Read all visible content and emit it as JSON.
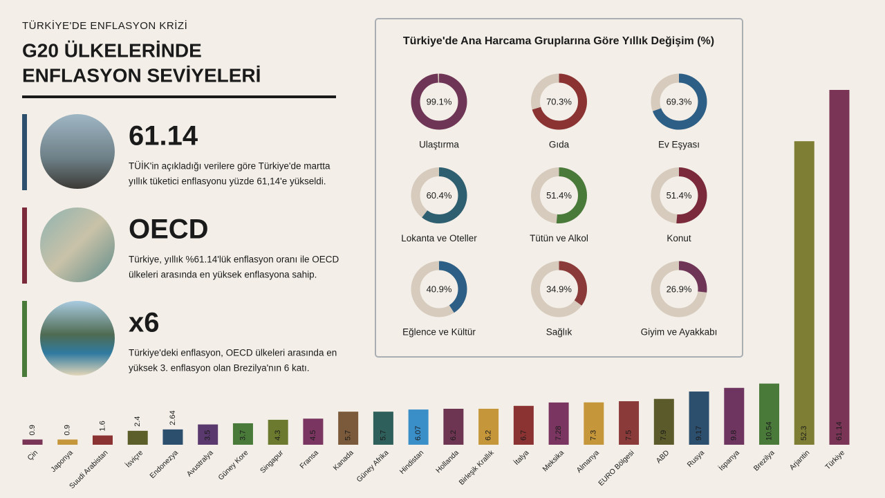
{
  "header": {
    "kicker": "TÜRKİYE'DE ENFLASYON KRİZİ",
    "title_lines": [
      "G20 ÜLKELERİNDE",
      "ENFLASYON SEVİYELERİ"
    ]
  },
  "highlights": [
    {
      "heading": "61.14",
      "color": "#2d4f6e",
      "lines": [
        "TÜİK'in açıkladığı verilere göre Türkiye'de martta",
        "yıllık tüketici enflasyonu yüzde 61,14'e yükseldi."
      ]
    },
    {
      "heading": "OECD",
      "color": "#7a2a3a",
      "lines": [
        "Türkiye, yıllık %61.14'lük enflasyon oranı ile OECD",
        "ülkeleri arasında en yüksek enflasyona sahip."
      ]
    },
    {
      "heading": "x6",
      "color": "#4a7a3a",
      "lines": [
        "Türkiye'deki enflasyon, OECD ülkeleri arasında en",
        "yüksek 3. enflasyon olan Brezilya'nın 6 katı."
      ]
    }
  ],
  "chart_data": [
    {
      "type": "bar",
      "categories": [
        "Çin",
        "Japonya",
        "Suudi Arabistan",
        "İsviçre",
        "Endonezya",
        "Avustralya",
        "Güney Kore",
        "Singapur",
        "Fransa",
        "Kanada",
        "Güney Afrika",
        "Hindistan",
        "Hollanda",
        "Birleşik Krallık",
        "İtalya",
        "Meksika",
        "Almanya",
        "EURO Bölgesi",
        "ABD",
        "Rusya",
        "İspanya",
        "Brezilya",
        "Arjantin",
        "Türkiye"
      ],
      "values": [
        0.9,
        0.9,
        1.6,
        2.4,
        2.64,
        3.5,
        3.7,
        4.3,
        4.5,
        5.7,
        5.7,
        6.07,
        6.2,
        6.2,
        6.7,
        7.28,
        7.3,
        7.5,
        7.9,
        9.17,
        9.8,
        10.54,
        52.3,
        61.14
      ],
      "colors": [
        "#7a3556",
        "#c5963a",
        "#8b3232",
        "#5c5f2a",
        "#2d4f6e",
        "#5a3a6e",
        "#4a7a3a",
        "#6b7a2e",
        "#7a3560",
        "#7a5a3a",
        "#2e5f5a",
        "#3a8fc8",
        "#6e3552",
        "#c5963a",
        "#8b3232",
        "#7a3560",
        "#c5963a",
        "#8b3a3a",
        "#5a5a2a",
        "#2d4f6e",
        "#6e3560",
        "#4a7a3a",
        "#7e7f34",
        "#7a3556"
      ]
    },
    {
      "type": "donut",
      "title": "Türkiye'de Ana Harcama Gruplarına Göre Yıllık Değişim (%)",
      "categories": [
        "Ulaştırma",
        "Gıda",
        "Ev Eşyası",
        "Lokanta ve Oteller",
        "Tütün ve Alkol",
        "Konut",
        "Eğlence ve Kültür",
        "Sağlık",
        "Giyim ve Ayakkabı"
      ],
      "values": [
        99.1,
        70.3,
        69.3,
        60.4,
        51.4,
        51.4,
        40.9,
        34.9,
        26.9
      ],
      "value_labels": [
        "99.1%",
        "70.3%",
        "69.3%",
        "60.4%",
        "51.4%",
        "51.4%",
        "40.9%",
        "34.9%",
        "26.9%"
      ],
      "colors": [
        "#6e3556",
        "#8b3232",
        "#2d5f86",
        "#2d5f70",
        "#4a7a3a",
        "#7a2a3a",
        "#2d5f86",
        "#8b3a3a",
        "#6e3556"
      ]
    }
  ]
}
